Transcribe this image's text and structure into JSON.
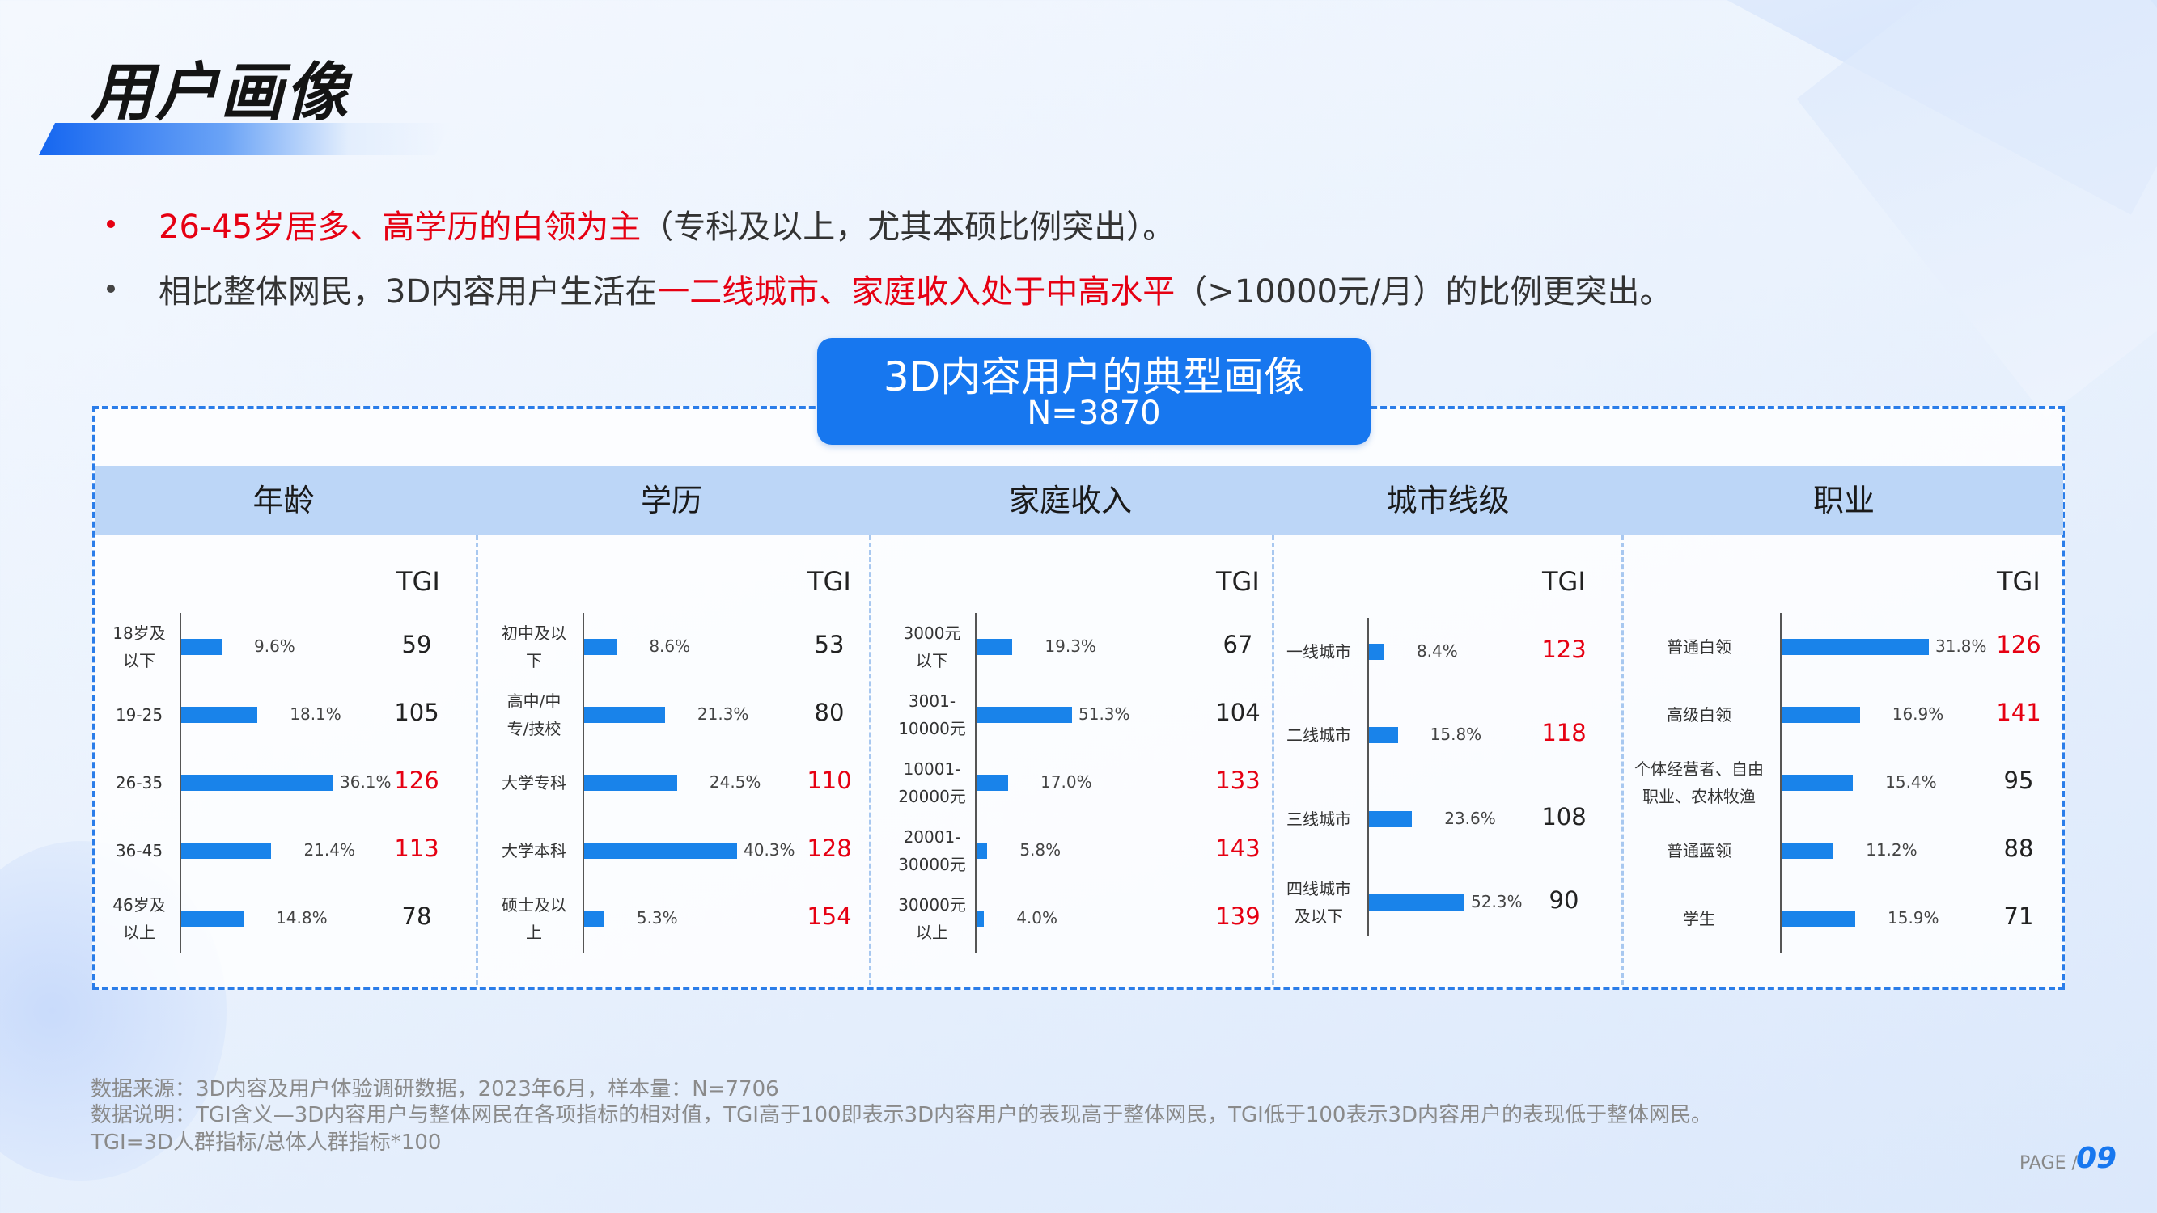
{
  "page": {
    "title": "用户画像",
    "bullets": [
      {
        "parts": [
          {
            "text": "26-45岁居多、高学历的白领为主",
            "highlight": true
          },
          {
            "text": "（专科及以上，尤其本硕比例突出）。",
            "highlight": false
          }
        ]
      },
      {
        "parts": [
          {
            "text": "相比整体网民，3D内容用户生活在",
            "highlight": false
          },
          {
            "text": "一二线城市、家庭收入处于中高水平",
            "highlight": true
          },
          {
            "text": "（>10000元/月）的比例更突出。",
            "highlight": false
          }
        ]
      }
    ],
    "badge": {
      "title": "3D内容用户的典型画像",
      "subtitle": "N=3870"
    },
    "footnotes": [
      "数据来源：3D内容及用户体验调研数据，2023年6月，样本量：N=7706",
      "数据说明：TGI含义—3D内容用户与整体网民在各项指标的相对值，TGI高于100即表示3D内容用户的表现高于整体网民，TGI低于100表示3D内容用户的表现低于整体网民。",
      "TGI=3D人群指标/总体人群指标*100"
    ],
    "page_label": "PAGE /",
    "page_number": "09"
  },
  "colors": {
    "accent": "#1777ef",
    "bar": "#1983ea",
    "highlight": "#e60012",
    "header_bg": "#bcd6f7"
  },
  "chart_data": [
    {
      "type": "bar",
      "orientation": "horizontal",
      "title": "年龄",
      "tgi_label": "TGI",
      "categories": [
        [
          "18岁及",
          "以下"
        ],
        [
          "19-25"
        ],
        [
          "26-35"
        ],
        [
          "36-45"
        ],
        [
          "46岁及",
          "以上"
        ]
      ],
      "values": [
        9.6,
        18.1,
        36.1,
        21.4,
        14.8
      ],
      "value_labels": [
        "9.6%",
        "18.1%",
        "36.1%",
        "21.4%",
        "14.8%"
      ],
      "tgi": [
        59,
        105,
        126,
        113,
        78
      ]
    },
    {
      "type": "bar",
      "orientation": "horizontal",
      "title": "学历",
      "tgi_label": "TGI",
      "categories": [
        [
          "初中及以",
          "下"
        ],
        [
          "高中/中",
          "专/技校"
        ],
        [
          "大学专科"
        ],
        [
          "大学本科"
        ],
        [
          "硕士及以",
          "上"
        ]
      ],
      "values": [
        8.6,
        21.3,
        24.5,
        40.3,
        5.3
      ],
      "value_labels": [
        "8.6%",
        "21.3%",
        "24.5%",
        "40.3%",
        "5.3%"
      ],
      "tgi": [
        53,
        80,
        110,
        128,
        154
      ]
    },
    {
      "type": "bar",
      "orientation": "horizontal",
      "title": "家庭收入",
      "tgi_label": "TGI",
      "categories": [
        [
          "3000元",
          "以下"
        ],
        [
          "3001-",
          "10000元"
        ],
        [
          "10001-",
          "20000元"
        ],
        [
          "20001-",
          "30000元"
        ],
        [
          "30000元",
          "以上"
        ]
      ],
      "values": [
        19.3,
        51.3,
        17.0,
        5.8,
        4.0
      ],
      "value_labels": [
        "19.3%",
        "51.3%",
        "17.0%",
        "5.8%",
        "4.0%"
      ],
      "tgi": [
        67,
        104,
        133,
        143,
        139
      ]
    },
    {
      "type": "bar",
      "orientation": "horizontal",
      "title": "城市线级",
      "tgi_label": "TGI",
      "categories": [
        [
          "一线城市"
        ],
        [
          "二线城市"
        ],
        [
          "三线城市"
        ],
        [
          "四线城市",
          "及以下"
        ]
      ],
      "values": [
        8.4,
        15.8,
        23.6,
        52.3
      ],
      "value_labels": [
        "8.4%",
        "15.8%",
        "23.6%",
        "52.3%"
      ],
      "tgi": [
        123,
        118,
        108,
        90
      ]
    },
    {
      "type": "bar",
      "orientation": "horizontal",
      "title": "职业",
      "tgi_label": "TGI",
      "categories": [
        [
          "普通白领"
        ],
        [
          "高级白领"
        ],
        [
          "个体经营者、自由",
          "职业、农林牧渔"
        ],
        [
          "普通蓝领"
        ],
        [
          "学生"
        ]
      ],
      "values": [
        31.8,
        16.9,
        15.4,
        11.2,
        15.9
      ],
      "value_labels": [
        "31.8%",
        "16.9%",
        "15.4%",
        "11.2%",
        "15.9%"
      ],
      "tgi": [
        126,
        141,
        95,
        88,
        71
      ]
    }
  ]
}
